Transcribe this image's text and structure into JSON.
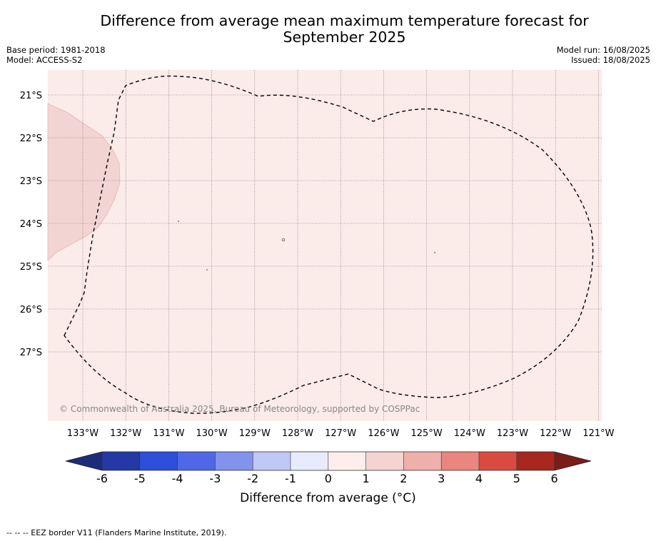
{
  "header": {
    "title_line1": "Difference from average mean maximum temperature forecast for",
    "title_line2": "September 2025",
    "base_period": "Base period: 1981-2018",
    "model": "Model: ACCESS-S2",
    "model_run": "Model run: 16/08/2025",
    "issued": "Issued: 18/08/2025"
  },
  "map": {
    "background_color": "#fbebe9",
    "anomaly_patch_color": "#f2d5d3",
    "latitude_labels": [
      "21°S",
      "22°S",
      "23°S",
      "24°S",
      "25°S",
      "26°S",
      "27°S"
    ],
    "longitude_labels": [
      "133°W",
      "132°W",
      "131°W",
      "130°W",
      "129°W",
      "128°W",
      "127°W",
      "126°W",
      "125°W",
      "124°W",
      "123°W",
      "122°W",
      "121°W"
    ],
    "copyright": "© Commonwealth of Australia 2025, Bureau of Meteorology, supported by COSPPac"
  },
  "colorbar": {
    "ticks": [
      "-6",
      "-5",
      "-4",
      "-3",
      "-2",
      "-1",
      "0",
      "1",
      "2",
      "3",
      "4",
      "5",
      "6"
    ],
    "colors": [
      "#2438a6",
      "#2e4fd8",
      "#5068e6",
      "#8293ec",
      "#c0c8f5",
      "#e8ebfb",
      "#fdeeec",
      "#f4d3d1",
      "#efafaa",
      "#e8867f",
      "#d94b41",
      "#a8271f"
    ],
    "low_extend_color": "#1c2b7a",
    "high_extend_color": "#7a1c18",
    "label": "Difference from average (°C)"
  },
  "footer": {
    "legend_text": "--  --  -- EEZ border V11 (Flanders Marine Institute, 2019)."
  }
}
